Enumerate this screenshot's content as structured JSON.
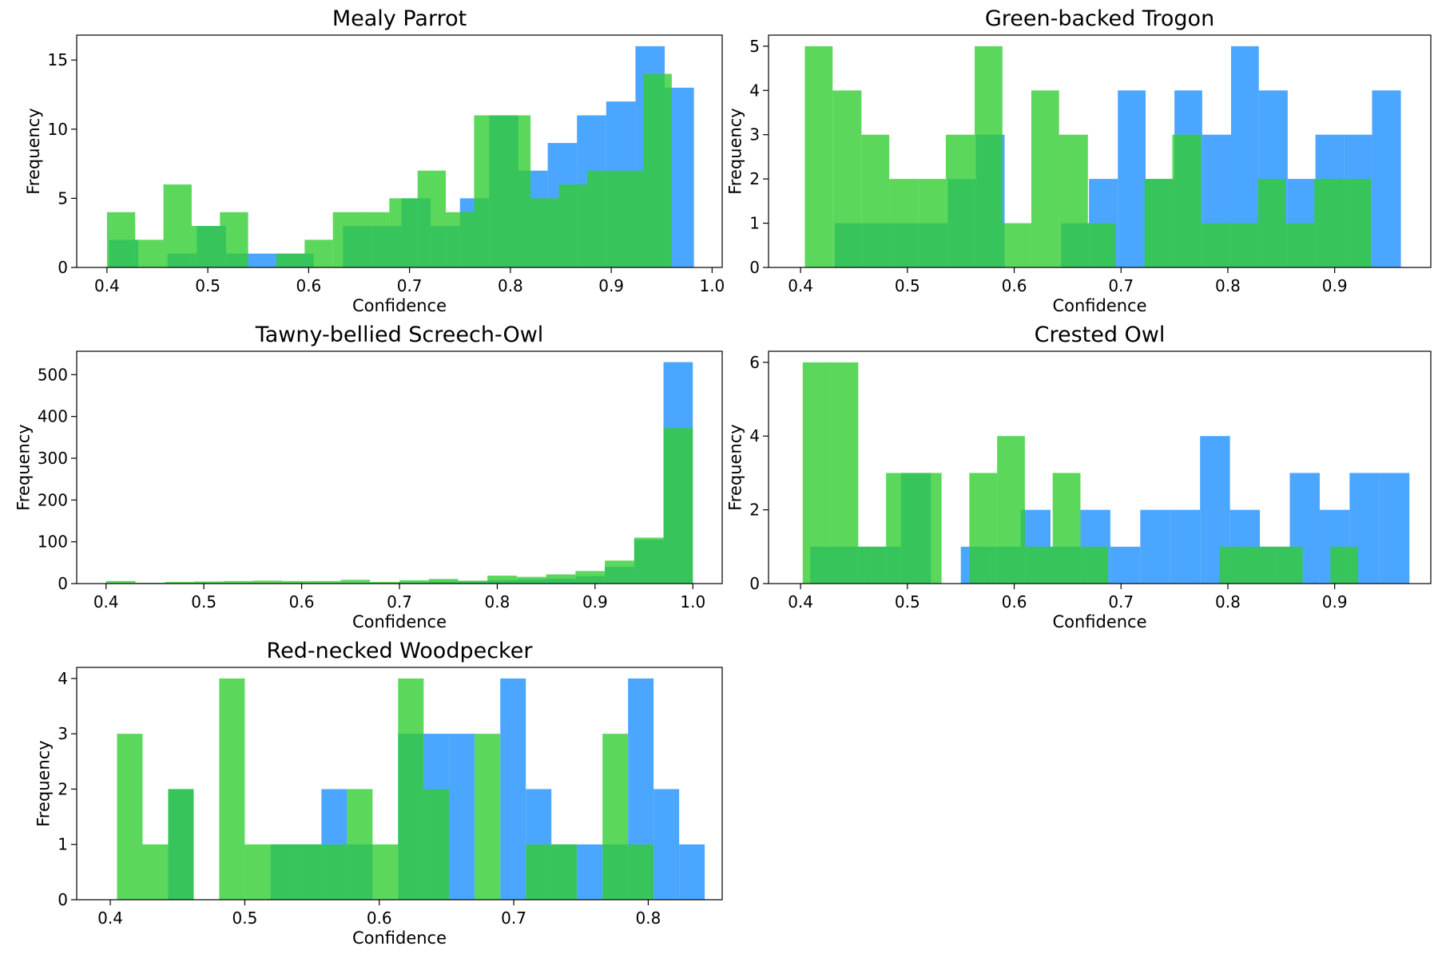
{
  "chart_data": [
    {
      "type": "histogram",
      "title": "Mealy Parrot",
      "xlabel": "Confidence",
      "ylabel": "Frequency",
      "xlim": [
        0.37,
        1.01
      ],
      "ylim": [
        0,
        16.8
      ],
      "xticks": [
        "0.4",
        "0.5",
        "0.6",
        "0.7",
        "0.8",
        "0.9",
        "1.0"
      ],
      "yticks": [
        "0",
        "5",
        "10",
        "15"
      ],
      "series": [
        {
          "color": "#1E90FF",
          "bins": [
            [
              0.402,
              0.431,
              2
            ],
            [
              0.431,
              0.46,
              0
            ],
            [
              0.46,
              0.489,
              1
            ],
            [
              0.489,
              0.518,
              3
            ],
            [
              0.518,
              0.547,
              1
            ],
            [
              0.547,
              0.576,
              1
            ],
            [
              0.576,
              0.605,
              1
            ],
            [
              0.605,
              0.634,
              0
            ],
            [
              0.634,
              0.663,
              3
            ],
            [
              0.663,
              0.692,
              3
            ],
            [
              0.692,
              0.721,
              5
            ],
            [
              0.721,
              0.75,
              3
            ],
            [
              0.75,
              0.779,
              5
            ],
            [
              0.779,
              0.808,
              11
            ],
            [
              0.808,
              0.837,
              7
            ],
            [
              0.837,
              0.866,
              9
            ],
            [
              0.866,
              0.895,
              11
            ],
            [
              0.895,
              0.924,
              12
            ],
            [
              0.924,
              0.953,
              16
            ],
            [
              0.953,
              0.982,
              13
            ]
          ]
        },
        {
          "color": "#32CD32",
          "bins": [
            [
              0.4,
              0.428,
              4
            ],
            [
              0.428,
              0.456,
              2
            ],
            [
              0.456,
              0.484,
              6
            ],
            [
              0.484,
              0.512,
              3
            ],
            [
              0.512,
              0.54,
              4
            ],
            [
              0.54,
              0.568,
              0
            ],
            [
              0.568,
              0.596,
              1
            ],
            [
              0.596,
              0.624,
              2
            ],
            [
              0.624,
              0.652,
              4
            ],
            [
              0.652,
              0.68,
              4
            ],
            [
              0.68,
              0.708,
              5
            ],
            [
              0.708,
              0.736,
              7
            ],
            [
              0.736,
              0.764,
              4
            ],
            [
              0.764,
              0.792,
              11
            ],
            [
              0.792,
              0.82,
              11
            ],
            [
              0.82,
              0.848,
              5
            ],
            [
              0.848,
              0.876,
              6
            ],
            [
              0.876,
              0.904,
              7
            ],
            [
              0.904,
              0.932,
              7
            ],
            [
              0.932,
              0.96,
              14
            ]
          ]
        }
      ]
    },
    {
      "type": "histogram",
      "title": "Green-backed Trogon",
      "xlabel": "Confidence",
      "ylabel": "Frequency",
      "xlim": [
        0.37,
        0.99
      ],
      "ylim": [
        0,
        5.25
      ],
      "xticks": [
        "0.4",
        "0.5",
        "0.6",
        "0.7",
        "0.8",
        "0.9"
      ],
      "yticks": [
        "0",
        "1",
        "2",
        "3",
        "4",
        "5"
      ],
      "series": [
        {
          "color": "#1E90FF",
          "bins": [
            [
              0.432,
              0.458,
              1
            ],
            [
              0.458,
              0.485,
              1
            ],
            [
              0.485,
              0.511,
              1
            ],
            [
              0.511,
              0.538,
              1
            ],
            [
              0.538,
              0.564,
              2
            ],
            [
              0.564,
              0.591,
              3
            ],
            [
              0.591,
              0.617,
              0
            ],
            [
              0.617,
              0.644,
              0
            ],
            [
              0.644,
              0.67,
              1
            ],
            [
              0.67,
              0.697,
              2
            ],
            [
              0.697,
              0.723,
              4
            ],
            [
              0.723,
              0.75,
              2
            ],
            [
              0.75,
              0.776,
              4
            ],
            [
              0.776,
              0.803,
              3
            ],
            [
              0.803,
              0.829,
              5
            ],
            [
              0.829,
              0.856,
              4
            ],
            [
              0.856,
              0.882,
              2
            ],
            [
              0.882,
              0.909,
              3
            ],
            [
              0.909,
              0.935,
              3
            ],
            [
              0.935,
              0.962,
              4
            ]
          ]
        },
        {
          "color": "#32CD32",
          "bins": [
            [
              0.404,
              0.43,
              5
            ],
            [
              0.43,
              0.457,
              4
            ],
            [
              0.457,
              0.483,
              3
            ],
            [
              0.483,
              0.51,
              2
            ],
            [
              0.51,
              0.536,
              2
            ],
            [
              0.536,
              0.563,
              3
            ],
            [
              0.563,
              0.589,
              5
            ],
            [
              0.589,
              0.616,
              1
            ],
            [
              0.616,
              0.642,
              4
            ],
            [
              0.642,
              0.669,
              3
            ],
            [
              0.669,
              0.695,
              1
            ],
            [
              0.695,
              0.722,
              0
            ],
            [
              0.722,
              0.748,
              2
            ],
            [
              0.748,
              0.775,
              3
            ],
            [
              0.775,
              0.801,
              1
            ],
            [
              0.801,
              0.828,
              1
            ],
            [
              0.828,
              0.854,
              2
            ],
            [
              0.854,
              0.881,
              1
            ],
            [
              0.881,
              0.907,
              2
            ],
            [
              0.907,
              0.934,
              2
            ]
          ]
        }
      ]
    },
    {
      "type": "histogram",
      "title": "Tawny-bellied Screech-Owl",
      "xlabel": "Confidence",
      "ylabel": "Frequency",
      "xlim": [
        0.37,
        1.03
      ],
      "ylim": [
        0,
        556
      ],
      "xticks": [
        "0.4",
        "0.5",
        "0.6",
        "0.7",
        "0.8",
        "0.9",
        "1.0"
      ],
      "yticks": [
        "0",
        "100",
        "200",
        "300",
        "400",
        "500"
      ],
      "series": [
        {
          "color": "#1E90FF",
          "bins": [
            [
              0.7,
              0.73,
              3
            ],
            [
              0.73,
              0.76,
              5
            ],
            [
              0.76,
              0.79,
              5
            ],
            [
              0.79,
              0.82,
              8
            ],
            [
              0.82,
              0.85,
              10
            ],
            [
              0.85,
              0.88,
              12
            ],
            [
              0.88,
              0.91,
              18
            ],
            [
              0.91,
              0.94,
              40
            ],
            [
              0.94,
              0.97,
              105
            ],
            [
              0.97,
              1.0,
              530
            ]
          ]
        },
        {
          "color": "#32CD32",
          "bins": [
            [
              0.4,
              0.43,
              6
            ],
            [
              0.43,
              0.46,
              2
            ],
            [
              0.46,
              0.49,
              4
            ],
            [
              0.49,
              0.52,
              5
            ],
            [
              0.52,
              0.55,
              6
            ],
            [
              0.55,
              0.58,
              7
            ],
            [
              0.58,
              0.61,
              6
            ],
            [
              0.61,
              0.64,
              6
            ],
            [
              0.64,
              0.67,
              9
            ],
            [
              0.67,
              0.7,
              4
            ],
            [
              0.7,
              0.73,
              8
            ],
            [
              0.73,
              0.76,
              11
            ],
            [
              0.76,
              0.79,
              7
            ],
            [
              0.79,
              0.82,
              19
            ],
            [
              0.82,
              0.85,
              16
            ],
            [
              0.85,
              0.88,
              22
            ],
            [
              0.88,
              0.91,
              30
            ],
            [
              0.91,
              0.94,
              55
            ],
            [
              0.94,
              0.97,
              110
            ],
            [
              0.97,
              1.0,
              372
            ]
          ]
        }
      ]
    },
    {
      "type": "histogram",
      "title": "Crested Owl",
      "xlabel": "Confidence",
      "ylabel": "Frequency",
      "xlim": [
        0.37,
        0.99
      ],
      "ylim": [
        0,
        6.3
      ],
      "xticks": [
        "0.4",
        "0.5",
        "0.6",
        "0.7",
        "0.8",
        "0.9"
      ],
      "yticks": [
        "0",
        "2",
        "4",
        "6"
      ],
      "series": [
        {
          "color": "#1E90FF",
          "bins": [
            [
              0.409,
              0.437,
              1
            ],
            [
              0.437,
              0.466,
              1
            ],
            [
              0.466,
              0.494,
              1
            ],
            [
              0.494,
              0.522,
              3
            ],
            [
              0.522,
              0.55,
              0
            ],
            [
              0.55,
              0.578,
              1
            ],
            [
              0.578,
              0.606,
              1
            ],
            [
              0.606,
              0.634,
              2
            ],
            [
              0.634,
              0.662,
              1
            ],
            [
              0.662,
              0.69,
              2
            ],
            [
              0.69,
              0.718,
              1
            ],
            [
              0.718,
              0.746,
              2
            ],
            [
              0.746,
              0.774,
              2
            ],
            [
              0.774,
              0.802,
              4
            ],
            [
              0.802,
              0.83,
              2
            ],
            [
              0.83,
              0.858,
              1
            ],
            [
              0.858,
              0.886,
              3
            ],
            [
              0.886,
              0.914,
              2
            ],
            [
              0.914,
              0.942,
              3
            ],
            [
              0.942,
              0.97,
              3
            ]
          ]
        },
        {
          "color": "#32CD32",
          "bins": [
            [
              0.402,
              0.428,
              6
            ],
            [
              0.428,
              0.454,
              6
            ],
            [
              0.454,
              0.48,
              1
            ],
            [
              0.48,
              0.506,
              3
            ],
            [
              0.506,
              0.532,
              3
            ],
            [
              0.532,
              0.558,
              0
            ],
            [
              0.558,
              0.584,
              3
            ],
            [
              0.584,
              0.61,
              4
            ],
            [
              0.61,
              0.636,
              1
            ],
            [
              0.636,
              0.662,
              3
            ],
            [
              0.662,
              0.688,
              1
            ],
            [
              0.688,
              0.714,
              0
            ],
            [
              0.714,
              0.74,
              0
            ],
            [
              0.74,
              0.766,
              0
            ],
            [
              0.766,
              0.792,
              0
            ],
            [
              0.792,
              0.818,
              1
            ],
            [
              0.818,
              0.844,
              1
            ],
            [
              0.844,
              0.87,
              1
            ],
            [
              0.87,
              0.896,
              0
            ],
            [
              0.896,
              0.922,
              1
            ]
          ]
        }
      ]
    },
    {
      "type": "histogram",
      "title": "Red-necked Woodpecker",
      "xlabel": "Confidence",
      "ylabel": "Frequency",
      "xlim": [
        0.375,
        0.855
      ],
      "ylim": [
        0,
        4.2
      ],
      "xticks": [
        "0.4",
        "0.5",
        "0.6",
        "0.7",
        "0.8"
      ],
      "yticks": [
        "0",
        "1",
        "2",
        "3",
        "4"
      ],
      "series": [
        {
          "color": "#1E90FF",
          "bins": [
            [
              0.443,
              0.462,
              2
            ],
            [
              0.462,
              0.481,
              0
            ],
            [
              0.481,
              0.5,
              0
            ],
            [
              0.5,
              0.519,
              0
            ],
            [
              0.519,
              0.538,
              1
            ],
            [
              0.538,
              0.557,
              1
            ],
            [
              0.557,
              0.576,
              2
            ],
            [
              0.576,
              0.595,
              1
            ],
            [
              0.595,
              0.614,
              0
            ],
            [
              0.614,
              0.633,
              3
            ],
            [
              0.633,
              0.652,
              3
            ],
            [
              0.652,
              0.671,
              3
            ],
            [
              0.671,
              0.69,
              0
            ],
            [
              0.69,
              0.709,
              4
            ],
            [
              0.709,
              0.728,
              2
            ],
            [
              0.728,
              0.747,
              1
            ],
            [
              0.747,
              0.766,
              1
            ],
            [
              0.766,
              0.785,
              1
            ],
            [
              0.785,
              0.804,
              4
            ],
            [
              0.804,
              0.823,
              2
            ],
            [
              0.823,
              0.842,
              1
            ]
          ]
        },
        {
          "color": "#32CD32",
          "bins": [
            [
              0.405,
              0.424,
              3
            ],
            [
              0.424,
              0.443,
              1
            ],
            [
              0.443,
              0.462,
              2
            ],
            [
              0.462,
              0.481,
              0
            ],
            [
              0.481,
              0.5,
              4
            ],
            [
              0.5,
              0.519,
              1
            ],
            [
              0.519,
              0.538,
              1
            ],
            [
              0.538,
              0.557,
              1
            ],
            [
              0.557,
              0.576,
              1
            ],
            [
              0.576,
              0.595,
              2
            ],
            [
              0.595,
              0.614,
              1
            ],
            [
              0.614,
              0.633,
              4
            ],
            [
              0.633,
              0.652,
              2
            ],
            [
              0.652,
              0.671,
              0
            ],
            [
              0.671,
              0.69,
              3
            ],
            [
              0.69,
              0.709,
              0
            ],
            [
              0.709,
              0.728,
              1
            ],
            [
              0.728,
              0.747,
              1
            ],
            [
              0.747,
              0.766,
              0
            ],
            [
              0.766,
              0.785,
              3
            ],
            [
              0.785,
              0.804,
              1
            ]
          ]
        }
      ]
    }
  ]
}
